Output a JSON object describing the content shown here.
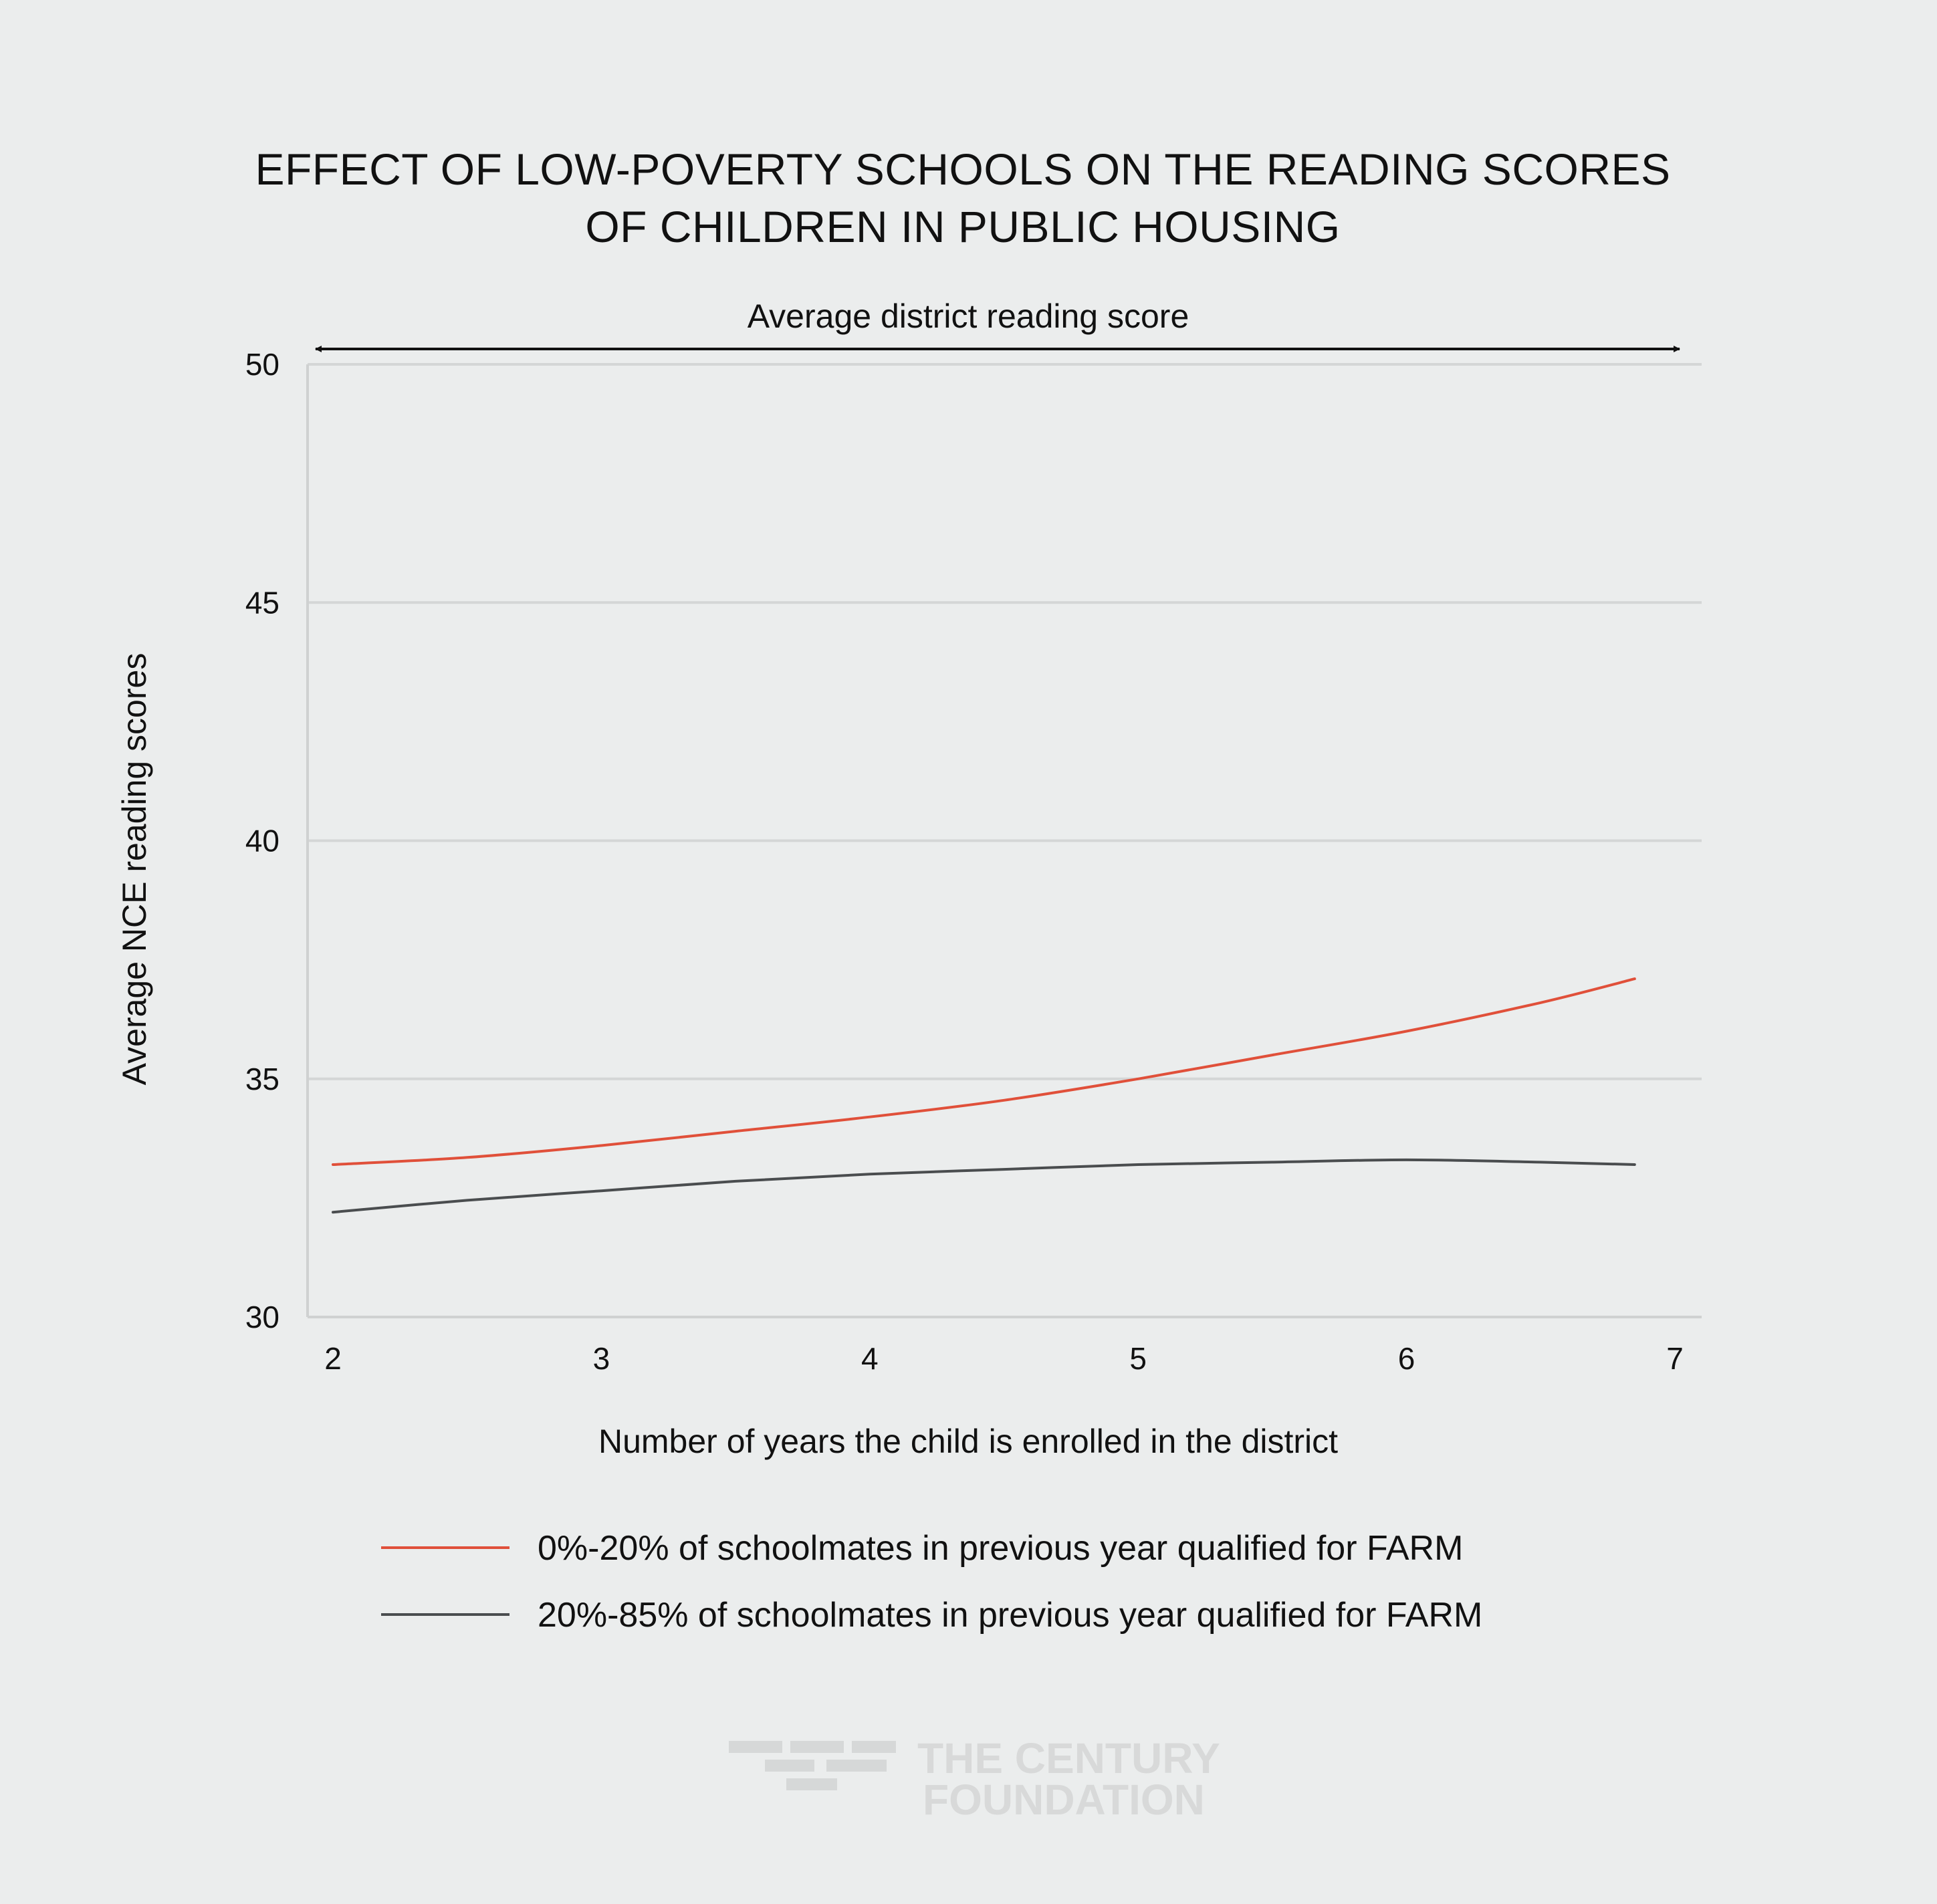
{
  "chart_data": {
    "type": "line",
    "title_lines": [
      "EFFECT OF LOW-POVERTY SCHOOLS ON THE READING SCORES",
      "OF CHILDREN IN PUBLIC HOUSING"
    ],
    "xlabel": "Number of years the child is enrolled in the district",
    "ylabel": "Average NCE reading scores",
    "xlim": [
      2,
      7
    ],
    "ylim": [
      30,
      50
    ],
    "x_ticks": [
      "2",
      "3",
      "4",
      "5",
      "6",
      "7"
    ],
    "y_ticks": [
      "30",
      "35",
      "40",
      "45",
      "50"
    ],
    "grid": true,
    "annotation": {
      "text": "Average district reading score",
      "value": 50,
      "style": "double-arrow"
    },
    "legend_position": "bottom",
    "series": [
      {
        "name": "0%-20% of schoolmates in previous year qualified for FARM",
        "color": "#e0503a",
        "x": [
          2.0,
          2.5,
          3.0,
          3.5,
          4.0,
          4.5,
          5.0,
          5.5,
          6.0,
          6.5,
          6.85
        ],
        "y": [
          33.2,
          33.35,
          33.6,
          33.9,
          34.2,
          34.55,
          35.0,
          35.5,
          36.0,
          36.6,
          37.1
        ]
      },
      {
        "name": "20%-85% of schoolmates in previous year qualified for FARM",
        "color": "#4a4d4f",
        "x": [
          2.0,
          2.5,
          3.0,
          3.5,
          4.0,
          4.5,
          5.0,
          5.5,
          6.0,
          6.5,
          6.85
        ],
        "y": [
          32.2,
          32.45,
          32.65,
          32.85,
          33.0,
          33.1,
          33.2,
          33.25,
          33.3,
          33.25,
          33.2
        ]
      }
    ]
  },
  "logo": {
    "line1": "THE CENTURY",
    "line2": "FOUNDATION"
  }
}
